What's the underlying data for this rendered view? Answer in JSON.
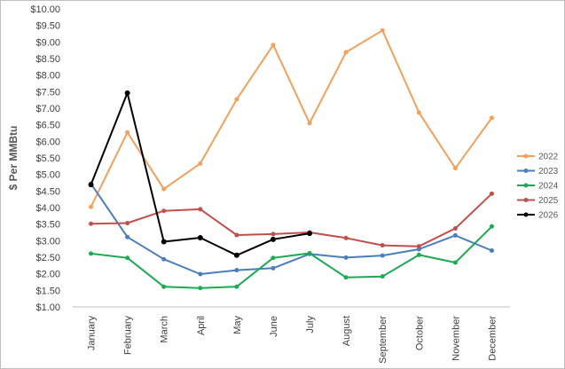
{
  "chart_data": {
    "type": "line",
    "title": "",
    "xlabel": "",
    "ylabel": "$ Per MMBtu",
    "ylim": [
      1.0,
      10.0
    ],
    "ytick_step": 0.5,
    "ytick_format": "$0.00",
    "grid": false,
    "legend_position": "right",
    "categories": [
      "January",
      "February",
      "March",
      "April",
      "May",
      "June",
      "July",
      "August",
      "September",
      "October",
      "November",
      "December"
    ],
    "series": [
      {
        "name": "2022",
        "color": "#f4a05b",
        "values": [
          4.02,
          6.27,
          4.56,
          5.33,
          7.27,
          8.91,
          6.55,
          8.69,
          9.35,
          6.87,
          5.19,
          6.71
        ]
      },
      {
        "name": "2023",
        "color": "#4a7ebb",
        "values": [
          4.72,
          3.11,
          2.44,
          1.99,
          2.11,
          2.17,
          2.6,
          2.49,
          2.55,
          2.74,
          3.16,
          2.7
        ]
      },
      {
        "name": "2024",
        "color": "#1daa55",
        "values": [
          2.61,
          2.48,
          1.61,
          1.57,
          1.61,
          2.48,
          2.62,
          1.89,
          1.92,
          2.57,
          2.34,
          3.43
        ]
      },
      {
        "name": "2025",
        "color": "#c0504d",
        "values": [
          3.51,
          3.53,
          3.9,
          3.95,
          3.17,
          3.2,
          3.25,
          3.08,
          2.86,
          2.83,
          3.37,
          4.42
        ]
      },
      {
        "name": "2026",
        "color": "#000000",
        "values": [
          4.69,
          7.46,
          2.97,
          3.09,
          2.56,
          3.04,
          3.22,
          null,
          null,
          null,
          null,
          null
        ]
      }
    ]
  }
}
